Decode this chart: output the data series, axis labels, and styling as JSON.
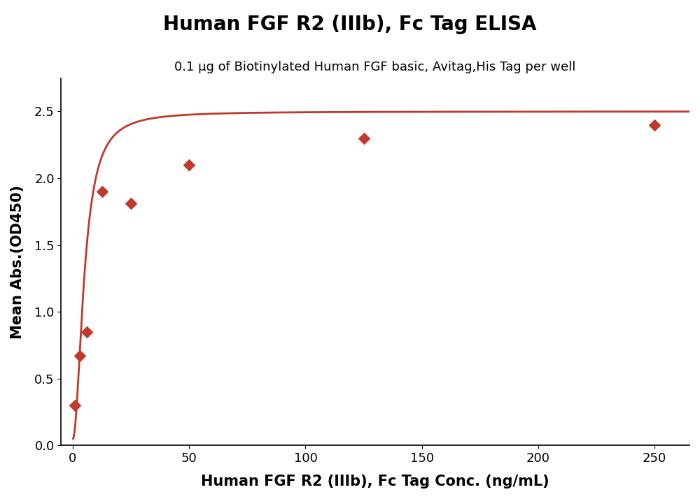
{
  "title": "Human FGF R2 (IIIb), Fc Tag ELISA",
  "subtitle": "0.1 μg of Biotinylated Human FGF basic, Avitag,His Tag per well",
  "xlabel": "Human FGF R2 (IIIb), Fc Tag Conc. (ng/mL)",
  "ylabel": "Mean Abs.(OD450)",
  "x_data": [
    1.0,
    3.0,
    6.0,
    12.5,
    25.0,
    50.0,
    125.0,
    250.0
  ],
  "y_data": [
    0.3,
    0.67,
    0.85,
    1.9,
    1.81,
    2.1,
    2.3,
    2.4
  ],
  "xlim": [
    -5,
    265
  ],
  "ylim": [
    0.0,
    2.75
  ],
  "yticks": [
    0.0,
    0.5,
    1.0,
    1.5,
    2.0,
    2.5
  ],
  "xticks": [
    0,
    50,
    100,
    150,
    200,
    250
  ],
  "color": "#C0392B",
  "marker": "D",
  "markersize": 9,
  "linewidth": 2.0,
  "title_fontsize": 20,
  "subtitle_fontsize": 13,
  "label_fontsize": 15,
  "tick_fontsize": 13,
  "background_color": "#ffffff"
}
